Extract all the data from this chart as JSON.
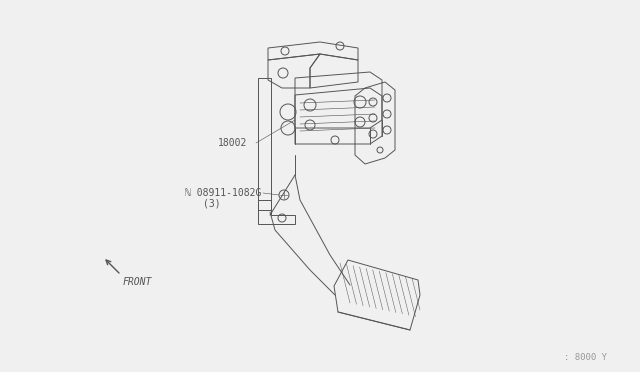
{
  "bg_color": "#f0f0f0",
  "line_color": "#555555",
  "label_18002": "18002",
  "label_bolt": "ℕ 08911-1082G",
  "label_bolt2": "(3)",
  "label_front": "FRONT",
  "label_ref": ": 8000 Y",
  "annotation_fontsize": 7.0,
  "ref_fontsize": 6.5,
  "fig_width": 6.4,
  "fig_height": 3.72,
  "dpi": 100
}
